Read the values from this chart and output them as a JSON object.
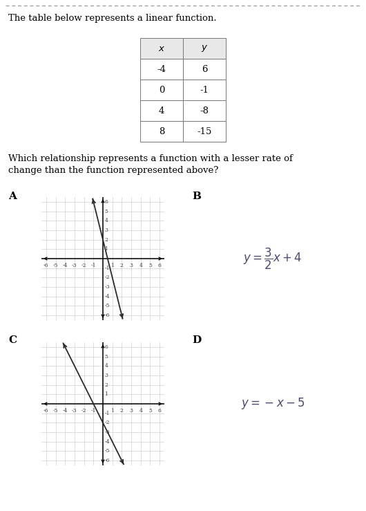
{
  "top_text": "The table below represents a linear function.",
  "table_headers": [
    "$x$",
    "$y$"
  ],
  "table_x_vals": [
    "-4",
    "0",
    "4",
    "8"
  ],
  "table_y_vals": [
    "6",
    "-1",
    "-8",
    "-15"
  ],
  "question_line1": "Which relationship represents a function with a lesser rate of",
  "question_line2": "change than the function represented above?",
  "label_A": "A",
  "label_B": "B",
  "label_C": "C",
  "label_D": "D",
  "eq_B": "$y = \\dfrac{3}{2}x + 4$",
  "eq_D": "$y = -x - 5$",
  "graph_A_slope": -4.0,
  "graph_A_intercept": 2.0,
  "graph_C_slope": -2.0,
  "graph_C_intercept": -2.0,
  "bg_color": "#ffffff",
  "text_color": "#000000",
  "grid_color": "#d0d0d0",
  "axis_color": "#000000",
  "line_color": "#2a2a2a",
  "table_border_color": "#777777",
  "table_header_bg": "#e8e8e8",
  "dash_color": "#999999",
  "eq_color": "#4a4a70",
  "label_fontsize": 11,
  "body_fontsize": 9.5,
  "eq_B_fontsize": 12,
  "eq_D_fontsize": 12,
  "tick_fontsize": 5.5
}
